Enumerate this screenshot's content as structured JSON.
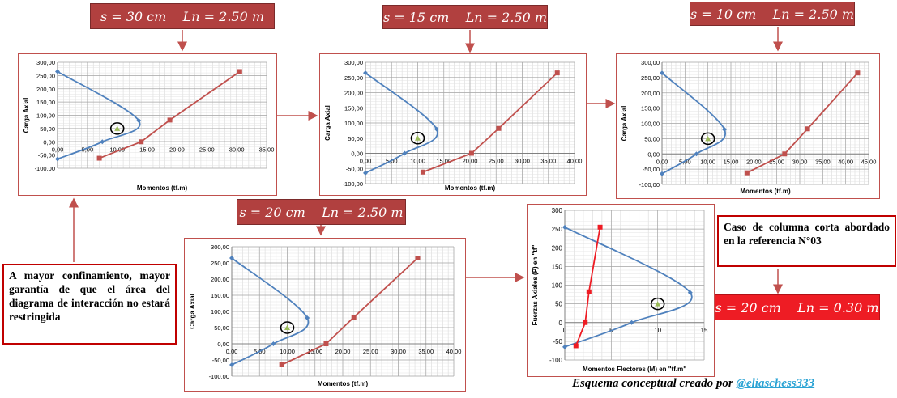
{
  "labels": {
    "top_left": "s = 30 cm    Ln = 2.50 m",
    "top_middle": "s = 15 cm    Ln = 2.50 m",
    "top_right": "s = 10 cm    Ln = 2.50 m",
    "bottom_middle": "s = 20 cm    Ln = 2.50 m",
    "short_column": "s = 20 cm    Ln = 0.30 m"
  },
  "notes": {
    "confinement": "A mayor confinamiento, mayor garantía de que el área del diagrama de interacción no estará restringida",
    "short_column_case": "Caso de columna corta abordado en la referencia N°03"
  },
  "footer": {
    "text": "Esquema conceptual creado por ",
    "handle": "@eliaschess333"
  },
  "colors": {
    "blue_curve": "#4f81bd",
    "red_curve": "#c0504d",
    "label_bg": "#b1403f",
    "label_bright": "#ee1c24",
    "point": "#9bbb59"
  },
  "chart_data": [
    {
      "type": "line",
      "xlabel": "Momentos (tf.m)",
      "ylabel": "Carga Axial",
      "xlim": [
        0,
        35
      ],
      "xticks": [
        0,
        5,
        10,
        15,
        20,
        25,
        30,
        35
      ],
      "xtick_decimals": 2,
      "ylim": [
        -100,
        300
      ],
      "yticks": [
        -100,
        -50,
        0,
        50,
        100,
        150,
        200,
        250,
        300
      ],
      "ytick_decimals": 2,
      "series": [
        {
          "color": "#4f81bd",
          "marker": "diamond",
          "smooth": true,
          "points": [
            [
              0,
              265
            ],
            [
              13.6,
              80
            ],
            [
              7.5,
              0
            ],
            [
              0,
              -65
            ]
          ]
        },
        {
          "color": "#c0504d",
          "marker": "square",
          "smooth": false,
          "points": [
            [
              7,
              -62
            ],
            [
              14,
              0
            ],
            [
              18.8,
              82
            ],
            [
              30.5,
              265
            ]
          ]
        }
      ],
      "demand_point": [
        10,
        50
      ]
    },
    {
      "type": "line",
      "xlabel": "Momentos (tf.m)",
      "ylabel": "Carga Axial",
      "xlim": [
        0,
        40
      ],
      "xticks": [
        0,
        5,
        10,
        15,
        20,
        25,
        30,
        35,
        40
      ],
      "xtick_decimals": 2,
      "ylim": [
        -100,
        300
      ],
      "yticks": [
        -100,
        -50,
        0,
        50,
        100,
        150,
        200,
        250,
        300
      ],
      "ytick_decimals": 2,
      "series": [
        {
          "color": "#4f81bd",
          "marker": "diamond",
          "smooth": true,
          "points": [
            [
              0,
              265
            ],
            [
              13.6,
              80
            ],
            [
              7.5,
              0
            ],
            [
              0,
              -65
            ]
          ]
        },
        {
          "color": "#c0504d",
          "marker": "square",
          "smooth": false,
          "points": [
            [
              11,
              -62
            ],
            [
              20.3,
              0
            ],
            [
              25.5,
              82
            ],
            [
              36.7,
              265
            ]
          ]
        }
      ],
      "demand_point": [
        10,
        50
      ]
    },
    {
      "type": "line",
      "xlabel": "Momentos (tf.m)",
      "ylabel": "Carga Axial",
      "xlim": [
        0,
        45
      ],
      "xticks": [
        0,
        5,
        10,
        15,
        20,
        25,
        30,
        35,
        40,
        45
      ],
      "xtick_decimals": 2,
      "ylim": [
        -100,
        300
      ],
      "yticks": [
        -100,
        -50,
        0,
        50,
        100,
        150,
        200,
        250,
        300
      ],
      "ytick_decimals": 2,
      "series": [
        {
          "color": "#4f81bd",
          "marker": "diamond",
          "smooth": true,
          "points": [
            [
              0,
              265
            ],
            [
              13.6,
              80
            ],
            [
              7.5,
              0
            ],
            [
              0,
              -65
            ]
          ]
        },
        {
          "color": "#c0504d",
          "marker": "square",
          "smooth": false,
          "points": [
            [
              18.5,
              -62
            ],
            [
              26.7,
              0
            ],
            [
              31.7,
              82
            ],
            [
              42.6,
              265
            ]
          ]
        }
      ],
      "demand_point": [
        10,
        50
      ]
    },
    {
      "type": "line",
      "xlabel": "Momentos (tf.m)",
      "ylabel": "Carga Axial",
      "xlim": [
        0,
        40
      ],
      "xticks": [
        0,
        5,
        10,
        15,
        20,
        25,
        30,
        35,
        40
      ],
      "xtick_decimals": 2,
      "ylim": [
        -100,
        300
      ],
      "yticks": [
        -100,
        -50,
        0,
        50,
        100,
        150,
        200,
        250,
        300
      ],
      "ytick_decimals": 2,
      "series": [
        {
          "color": "#4f81bd",
          "marker": "diamond",
          "smooth": true,
          "points": [
            [
              0,
              265
            ],
            [
              13.6,
              80
            ],
            [
              7.5,
              0
            ],
            [
              0,
              -65
            ]
          ]
        },
        {
          "color": "#c0504d",
          "marker": "square",
          "smooth": false,
          "points": [
            [
              9,
              -65
            ],
            [
              17,
              0
            ],
            [
              22,
              82
            ],
            [
              33.5,
              265
            ]
          ]
        }
      ],
      "demand_point": [
        10,
        50
      ]
    },
    {
      "type": "line",
      "xlabel": "Momentos Flectores (M) en \"tf.m\"",
      "ylabel": "Fuerzas Axiales (P) en \"tf\"",
      "xlim": [
        0,
        15
      ],
      "xticks": [
        0,
        5,
        10,
        15
      ],
      "xtick_decimals": 0,
      "ylim": [
        -100,
        300
      ],
      "yticks": [
        -100,
        -50,
        0,
        50,
        100,
        150,
        200,
        250,
        300
      ],
      "ytick_decimals": 0,
      "series": [
        {
          "color": "#4f81bd",
          "marker": "diamond",
          "smooth": true,
          "points": [
            [
              0,
              255
            ],
            [
              13.5,
              80
            ],
            [
              7.2,
              0
            ],
            [
              0,
              -65
            ]
          ]
        },
        {
          "color": "#ee1c24",
          "marker": "square",
          "smooth": false,
          "points": [
            [
              1.2,
              -62
            ],
            [
              2.2,
              0
            ],
            [
              2.6,
              82
            ],
            [
              3.8,
              255
            ]
          ]
        }
      ],
      "demand_point": [
        10,
        50
      ]
    }
  ]
}
